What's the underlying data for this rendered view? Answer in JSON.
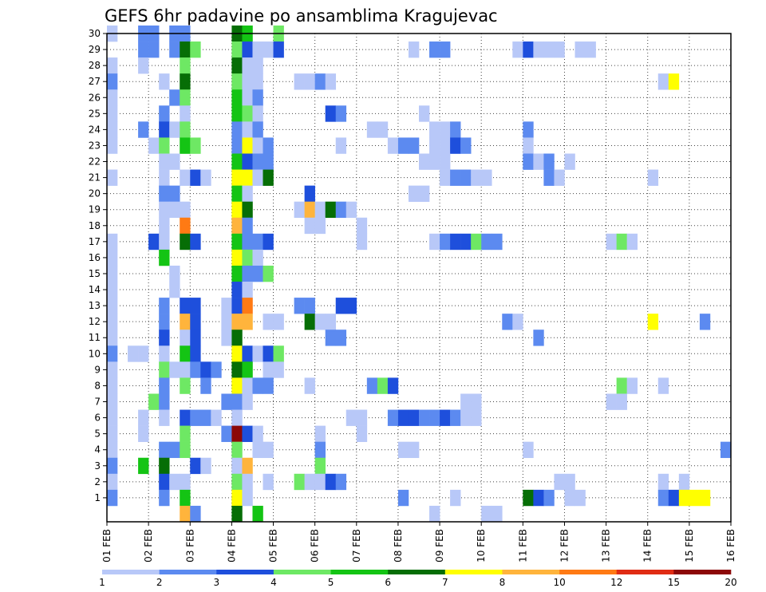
{
  "chart_data": {
    "type": "heatmap",
    "title": "GEFS 6hr padavine po ansamblima Kragujevac",
    "xlabel": "",
    "ylabel": "",
    "x_ticks": [
      "01 FEB",
      "02 FEB",
      "03 FEB",
      "04 FEB",
      "05 FEB",
      "06 FEB",
      "07 FEB",
      "08 FEB",
      "09 FEB",
      "10 FEB",
      "11 FEB",
      "12 FEB",
      "13 FEB",
      "14 FEB",
      "15 FEB",
      "16 FEB"
    ],
    "x_range": [
      "01 FEB 00Z",
      "16 FEB 00Z"
    ],
    "time_step_hours": 6,
    "y_ticks": [
      1,
      2,
      3,
      4,
      5,
      6,
      7,
      8,
      9,
      10,
      11,
      12,
      13,
      14,
      15,
      16,
      17,
      18,
      19,
      20,
      21,
      22,
      23,
      24,
      25,
      26,
      27,
      28,
      29,
      30
    ],
    "y_range": [
      0,
      30
    ],
    "grid": "dotted",
    "colorbar": {
      "placement": "bottom",
      "bounds": [
        1,
        2,
        3,
        4,
        5,
        6,
        7,
        8,
        10,
        12,
        15,
        20
      ],
      "labels": [
        "1",
        "2",
        "3",
        "4",
        "5",
        "6",
        "7",
        "8",
        "10",
        "12",
        "15",
        "20"
      ],
      "colors": [
        "#b8c8f8",
        "#5c8af0",
        "#1e4fdc",
        "#6ee864",
        "#14c414",
        "#066e06",
        "#ffff00",
        "#ffb43c",
        "#ff7a14",
        "#e02c14",
        "#8c0808"
      ]
    },
    "cells_columns": [
      "member",
      "time_step",
      "category"
    ],
    "cells": [
      [
        30,
        0,
        0
      ],
      [
        30,
        3,
        1
      ],
      [
        30,
        4,
        1
      ],
      [
        30,
        6,
        1
      ],
      [
        30,
        7,
        1
      ],
      [
        30,
        12,
        5
      ],
      [
        30,
        13,
        4
      ],
      [
        30,
        16,
        3
      ],
      [
        29,
        3,
        1
      ],
      [
        29,
        4,
        1
      ],
      [
        29,
        6,
        1
      ],
      [
        29,
        7,
        5
      ],
      [
        29,
        8,
        3
      ],
      [
        29,
        12,
        3
      ],
      [
        29,
        13,
        2
      ],
      [
        29,
        14,
        0
      ],
      [
        29,
        15,
        0
      ],
      [
        29,
        16,
        2
      ],
      [
        29,
        29,
        0
      ],
      [
        29,
        31,
        1
      ],
      [
        29,
        32,
        1
      ],
      [
        29,
        39,
        0
      ],
      [
        29,
        40,
        2
      ],
      [
        29,
        41,
        0
      ],
      [
        29,
        42,
        0
      ],
      [
        29,
        43,
        0
      ],
      [
        29,
        45,
        0
      ],
      [
        29,
        46,
        0
      ],
      [
        28,
        0,
        0
      ],
      [
        28,
        3,
        0
      ],
      [
        28,
        7,
        3
      ],
      [
        28,
        12,
        5
      ],
      [
        28,
        13,
        0
      ],
      [
        28,
        14,
        0
      ],
      [
        27,
        0,
        1
      ],
      [
        27,
        5,
        0
      ],
      [
        27,
        7,
        5
      ],
      [
        27,
        12,
        3
      ],
      [
        27,
        13,
        0
      ],
      [
        27,
        14,
        0
      ],
      [
        27,
        18,
        0
      ],
      [
        27,
        19,
        0
      ],
      [
        27,
        20,
        1
      ],
      [
        27,
        21,
        0
      ],
      [
        27,
        53,
        0
      ],
      [
        27,
        54,
        6
      ],
      [
        26,
        0,
        0
      ],
      [
        26,
        6,
        1
      ],
      [
        26,
        7,
        3
      ],
      [
        26,
        12,
        4
      ],
      [
        26,
        13,
        0
      ],
      [
        26,
        14,
        1
      ],
      [
        25,
        0,
        0
      ],
      [
        25,
        5,
        1
      ],
      [
        25,
        7,
        0
      ],
      [
        25,
        12,
        4
      ],
      [
        25,
        13,
        3
      ],
      [
        25,
        14,
        0
      ],
      [
        25,
        21,
        2
      ],
      [
        25,
        22,
        1
      ],
      [
        25,
        30,
        0
      ],
      [
        24,
        0,
        0
      ],
      [
        24,
        3,
        1
      ],
      [
        24,
        5,
        2
      ],
      [
        24,
        6,
        0
      ],
      [
        24,
        7,
        3
      ],
      [
        24,
        12,
        1
      ],
      [
        24,
        13,
        0
      ],
      [
        24,
        14,
        1
      ],
      [
        24,
        25,
        0
      ],
      [
        24,
        26,
        0
      ],
      [
        24,
        31,
        0
      ],
      [
        24,
        32,
        0
      ],
      [
        24,
        33,
        1
      ],
      [
        24,
        40,
        1
      ],
      [
        23,
        0,
        0
      ],
      [
        23,
        4,
        0
      ],
      [
        23,
        5,
        3
      ],
      [
        23,
        7,
        4
      ],
      [
        23,
        8,
        3
      ],
      [
        23,
        12,
        1
      ],
      [
        23,
        13,
        6
      ],
      [
        23,
        14,
        0
      ],
      [
        23,
        15,
        1
      ],
      [
        23,
        22,
        0
      ],
      [
        23,
        27,
        0
      ],
      [
        23,
        28,
        1
      ],
      [
        23,
        29,
        1
      ],
      [
        23,
        31,
        0
      ],
      [
        23,
        32,
        0
      ],
      [
        23,
        33,
        2
      ],
      [
        23,
        34,
        1
      ],
      [
        23,
        40,
        0
      ],
      [
        22,
        5,
        0
      ],
      [
        22,
        6,
        0
      ],
      [
        22,
        12,
        4
      ],
      [
        22,
        13,
        2
      ],
      [
        22,
        14,
        1
      ],
      [
        22,
        15,
        1
      ],
      [
        22,
        30,
        0
      ],
      [
        22,
        31,
        0
      ],
      [
        22,
        32,
        0
      ],
      [
        22,
        40,
        1
      ],
      [
        22,
        41,
        0
      ],
      [
        22,
        42,
        1
      ],
      [
        22,
        44,
        0
      ],
      [
        21,
        0,
        0
      ],
      [
        21,
        5,
        0
      ],
      [
        21,
        7,
        0
      ],
      [
        21,
        8,
        2
      ],
      [
        21,
        9,
        0
      ],
      [
        21,
        12,
        6
      ],
      [
        21,
        13,
        6
      ],
      [
        21,
        14,
        0
      ],
      [
        21,
        15,
        5
      ],
      [
        21,
        32,
        0
      ],
      [
        21,
        33,
        1
      ],
      [
        21,
        34,
        1
      ],
      [
        21,
        35,
        0
      ],
      [
        21,
        36,
        0
      ],
      [
        21,
        42,
        1
      ],
      [
        21,
        43,
        0
      ],
      [
        21,
        52,
        0
      ],
      [
        20,
        5,
        1
      ],
      [
        20,
        6,
        1
      ],
      [
        20,
        12,
        4
      ],
      [
        20,
        13,
        0
      ],
      [
        20,
        19,
        2
      ],
      [
        20,
        29,
        0
      ],
      [
        20,
        30,
        0
      ],
      [
        19,
        5,
        0
      ],
      [
        19,
        6,
        0
      ],
      [
        19,
        7,
        0
      ],
      [
        19,
        12,
        6
      ],
      [
        19,
        13,
        5
      ],
      [
        19,
        18,
        0
      ],
      [
        19,
        19,
        7
      ],
      [
        19,
        20,
        0
      ],
      [
        19,
        21,
        5
      ],
      [
        19,
        22,
        1
      ],
      [
        19,
        23,
        0
      ],
      [
        18,
        5,
        0
      ],
      [
        18,
        7,
        8
      ],
      [
        18,
        12,
        7
      ],
      [
        18,
        13,
        1
      ],
      [
        18,
        19,
        0
      ],
      [
        18,
        20,
        0
      ],
      [
        18,
        24,
        0
      ],
      [
        17,
        0,
        0
      ],
      [
        17,
        4,
        2
      ],
      [
        17,
        5,
        0
      ],
      [
        17,
        7,
        5
      ],
      [
        17,
        8,
        2
      ],
      [
        17,
        12,
        4
      ],
      [
        17,
        13,
        1
      ],
      [
        17,
        14,
        1
      ],
      [
        17,
        15,
        2
      ],
      [
        17,
        24,
        0
      ],
      [
        17,
        31,
        0
      ],
      [
        17,
        32,
        1
      ],
      [
        17,
        33,
        2
      ],
      [
        17,
        34,
        2
      ],
      [
        17,
        35,
        3
      ],
      [
        17,
        36,
        1
      ],
      [
        17,
        37,
        1
      ],
      [
        17,
        48,
        0
      ],
      [
        17,
        49,
        3
      ],
      [
        17,
        50,
        0
      ],
      [
        16,
        0,
        0
      ],
      [
        16,
        5,
        4
      ],
      [
        16,
        12,
        6
      ],
      [
        16,
        13,
        3
      ],
      [
        16,
        14,
        0
      ],
      [
        15,
        0,
        0
      ],
      [
        15,
        6,
        0
      ],
      [
        15,
        12,
        4
      ],
      [
        15,
        13,
        1
      ],
      [
        15,
        14,
        1
      ],
      [
        15,
        15,
        3
      ],
      [
        14,
        0,
        0
      ],
      [
        14,
        6,
        0
      ],
      [
        14,
        12,
        2
      ],
      [
        14,
        13,
        0
      ],
      [
        13,
        0,
        0
      ],
      [
        13,
        5,
        1
      ],
      [
        13,
        7,
        2
      ],
      [
        13,
        8,
        2
      ],
      [
        13,
        11,
        0
      ],
      [
        13,
        12,
        2
      ],
      [
        13,
        13,
        8
      ],
      [
        13,
        18,
        1
      ],
      [
        13,
        19,
        1
      ],
      [
        13,
        22,
        2
      ],
      [
        13,
        23,
        2
      ],
      [
        12,
        0,
        0
      ],
      [
        12,
        5,
        1
      ],
      [
        12,
        7,
        7
      ],
      [
        12,
        8,
        2
      ],
      [
        12,
        11,
        0
      ],
      [
        12,
        12,
        7
      ],
      [
        12,
        13,
        7
      ],
      [
        12,
        15,
        0
      ],
      [
        12,
        16,
        0
      ],
      [
        12,
        19,
        5
      ],
      [
        12,
        20,
        0
      ],
      [
        12,
        21,
        0
      ],
      [
        12,
        38,
        1
      ],
      [
        12,
        39,
        0
      ],
      [
        12,
        52,
        6
      ],
      [
        12,
        57,
        1
      ],
      [
        11,
        0,
        0
      ],
      [
        11,
        5,
        2
      ],
      [
        11,
        7,
        0
      ],
      [
        11,
        8,
        2
      ],
      [
        11,
        11,
        0
      ],
      [
        11,
        12,
        5
      ],
      [
        11,
        21,
        1
      ],
      [
        11,
        22,
        1
      ],
      [
        11,
        41,
        1
      ],
      [
        10,
        0,
        1
      ],
      [
        10,
        2,
        0
      ],
      [
        10,
        3,
        0
      ],
      [
        10,
        5,
        0
      ],
      [
        10,
        7,
        4
      ],
      [
        10,
        8,
        2
      ],
      [
        10,
        12,
        6
      ],
      [
        10,
        13,
        2
      ],
      [
        10,
        14,
        0
      ],
      [
        10,
        15,
        2
      ],
      [
        10,
        16,
        3
      ],
      [
        9,
        0,
        0
      ],
      [
        9,
        5,
        3
      ],
      [
        9,
        6,
        0
      ],
      [
        9,
        7,
        0
      ],
      [
        9,
        8,
        1
      ],
      [
        9,
        9,
        2
      ],
      [
        9,
        10,
        1
      ],
      [
        9,
        12,
        5
      ],
      [
        9,
        13,
        4
      ],
      [
        9,
        15,
        0
      ],
      [
        9,
        16,
        0
      ],
      [
        8,
        0,
        0
      ],
      [
        8,
        5,
        1
      ],
      [
        8,
        7,
        3
      ],
      [
        8,
        9,
        1
      ],
      [
        8,
        12,
        6
      ],
      [
        8,
        13,
        0
      ],
      [
        8,
        14,
        1
      ],
      [
        8,
        15,
        1
      ],
      [
        8,
        19,
        0
      ],
      [
        8,
        25,
        1
      ],
      [
        8,
        26,
        3
      ],
      [
        8,
        27,
        2
      ],
      [
        8,
        49,
        3
      ],
      [
        8,
        50,
        0
      ],
      [
        8,
        53,
        0
      ],
      [
        7,
        0,
        0
      ],
      [
        7,
        4,
        3
      ],
      [
        7,
        5,
        1
      ],
      [
        7,
        11,
        1
      ],
      [
        7,
        12,
        1
      ],
      [
        7,
        13,
        0
      ],
      [
        7,
        34,
        0
      ],
      [
        7,
        35,
        0
      ],
      [
        7,
        48,
        0
      ],
      [
        7,
        49,
        0
      ],
      [
        6,
        0,
        0
      ],
      [
        6,
        3,
        0
      ],
      [
        6,
        5,
        0
      ],
      [
        6,
        7,
        2
      ],
      [
        6,
        8,
        1
      ],
      [
        6,
        9,
        1
      ],
      [
        6,
        10,
        0
      ],
      [
        6,
        12,
        0
      ],
      [
        6,
        23,
        0
      ],
      [
        6,
        24,
        0
      ],
      [
        6,
        27,
        1
      ],
      [
        6,
        28,
        2
      ],
      [
        6,
        29,
        2
      ],
      [
        6,
        30,
        1
      ],
      [
        6,
        31,
        1
      ],
      [
        6,
        32,
        2
      ],
      [
        6,
        33,
        1
      ],
      [
        6,
        34,
        0
      ],
      [
        6,
        35,
        0
      ],
      [
        5,
        0,
        0
      ],
      [
        5,
        3,
        0
      ],
      [
        5,
        7,
        3
      ],
      [
        5,
        11,
        1
      ],
      [
        5,
        12,
        10
      ],
      [
        5,
        13,
        2
      ],
      [
        5,
        14,
        0
      ],
      [
        5,
        20,
        0
      ],
      [
        5,
        24,
        0
      ],
      [
        4,
        0,
        0
      ],
      [
        4,
        5,
        1
      ],
      [
        4,
        6,
        1
      ],
      [
        4,
        7,
        3
      ],
      [
        4,
        12,
        3
      ],
      [
        4,
        14,
        0
      ],
      [
        4,
        15,
        0
      ],
      [
        4,
        20,
        1
      ],
      [
        4,
        28,
        0
      ],
      [
        4,
        29,
        0
      ],
      [
        4,
        40,
        0
      ],
      [
        4,
        59,
        1
      ],
      [
        3,
        0,
        1
      ],
      [
        3,
        3,
        4
      ],
      [
        3,
        5,
        5
      ],
      [
        3,
        8,
        2
      ],
      [
        3,
        9,
        0
      ],
      [
        3,
        12,
        0
      ],
      [
        3,
        13,
        7
      ],
      [
        3,
        20,
        3
      ],
      [
        2,
        0,
        0
      ],
      [
        2,
        5,
        2
      ],
      [
        2,
        6,
        0
      ],
      [
        2,
        7,
        0
      ],
      [
        2,
        12,
        3
      ],
      [
        2,
        13,
        0
      ],
      [
        2,
        15,
        0
      ],
      [
        2,
        18,
        3
      ],
      [
        2,
        19,
        0
      ],
      [
        2,
        20,
        0
      ],
      [
        2,
        21,
        2
      ],
      [
        2,
        22,
        1
      ],
      [
        2,
        43,
        0
      ],
      [
        2,
        44,
        0
      ],
      [
        2,
        53,
        0
      ],
      [
        2,
        55,
        0
      ],
      [
        1,
        0,
        1
      ],
      [
        1,
        5,
        1
      ],
      [
        1,
        7,
        4
      ],
      [
        1,
        12,
        6
      ],
      [
        1,
        13,
        0
      ],
      [
        1,
        28,
        1
      ],
      [
        1,
        33,
        0
      ],
      [
        1,
        40,
        5
      ],
      [
        1,
        41,
        2
      ],
      [
        1,
        42,
        1
      ],
      [
        1,
        44,
        0
      ],
      [
        1,
        45,
        0
      ],
      [
        1,
        53,
        1
      ],
      [
        1,
        54,
        2
      ],
      [
        1,
        55,
        6
      ],
      [
        1,
        56,
        6
      ],
      [
        1,
        57,
        6
      ],
      [
        0,
        7,
        7
      ],
      [
        0,
        8,
        1
      ],
      [
        0,
        12,
        5
      ],
      [
        0,
        14,
        4
      ],
      [
        0,
        31,
        0
      ],
      [
        0,
        36,
        0
      ],
      [
        0,
        37,
        0
      ]
    ]
  }
}
